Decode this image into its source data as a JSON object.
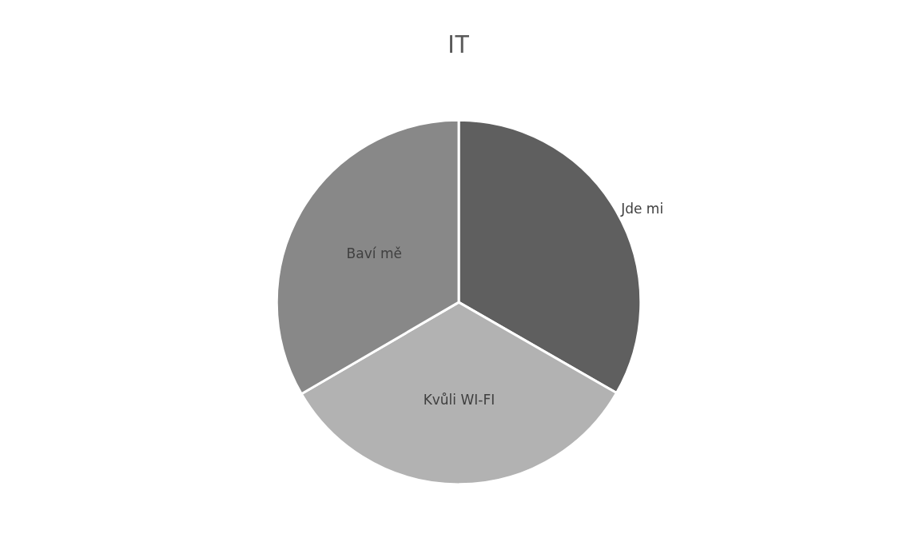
{
  "chart_data": {
    "type": "pie",
    "title": "IT",
    "categories": [
      "Jde mi",
      "Kvůli WI-FI",
      "Baví mě"
    ],
    "values": [
      33.3,
      33.3,
      33.4
    ],
    "colors": [
      "#5f5f5f",
      "#b2b2b2",
      "#888888"
    ],
    "legend": false
  }
}
